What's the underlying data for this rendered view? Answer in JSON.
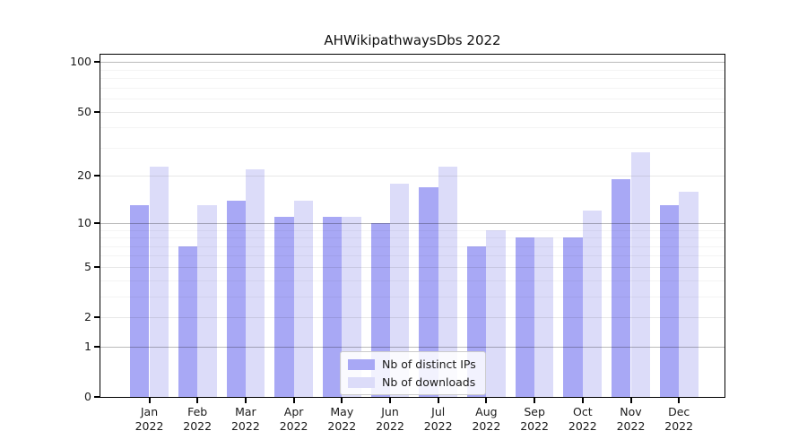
{
  "chart_data": {
    "type": "bar",
    "title": "AHWikipathwaysDbs 2022",
    "year_label": "2022",
    "categories": [
      "Jan",
      "Feb",
      "Mar",
      "Apr",
      "May",
      "Jun",
      "Jul",
      "Aug",
      "Sep",
      "Oct",
      "Nov",
      "Dec"
    ],
    "series": [
      {
        "name": "Nb of distinct IPs",
        "color": "#a8a8f5",
        "values": [
          13,
          7,
          14,
          11,
          11,
          10,
          17,
          7,
          8,
          8,
          19,
          13
        ]
      },
      {
        "name": "Nb of downloads",
        "color": "#dcdcf9",
        "values": [
          23,
          13,
          22,
          14,
          11,
          18,
          23,
          9,
          8,
          12,
          28,
          16
        ]
      }
    ],
    "yscale": "log1p",
    "yticks": [
      0,
      1,
      2,
      5,
      10,
      20,
      50,
      100
    ],
    "emphasized_gridlines": [
      1,
      10,
      100
    ],
    "minor_gridlines": [
      3,
      4,
      6,
      7,
      8,
      9,
      30,
      40,
      60,
      70,
      80,
      90
    ],
    "ylim": [
      0,
      112
    ],
    "grid": true,
    "legend_position": "lower center"
  },
  "colors": {
    "background": "#ffffff",
    "axis": "#000000",
    "text": "#1a1a1a",
    "legend_border": "#cccccc"
  }
}
